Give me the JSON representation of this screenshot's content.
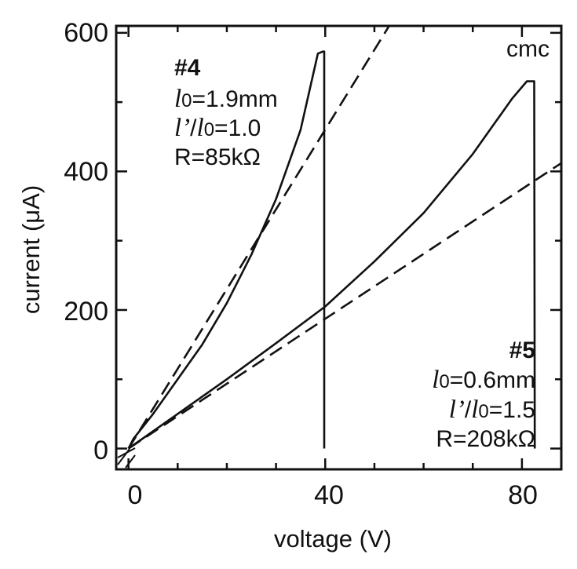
{
  "chart_data": {
    "type": "line",
    "xlabel": "voltage (V)",
    "ylabel": "current (μA)",
    "xlim": [
      -2.5,
      88
    ],
    "ylim": [
      -30,
      610
    ],
    "x_ticks": [
      0,
      40,
      80
    ],
    "y_ticks": [
      0,
      200,
      400,
      600
    ],
    "x_tick_labels": [
      "0",
      "40",
      "80"
    ],
    "y_tick_labels": [
      "0",
      "200",
      "400",
      "600"
    ],
    "corner_label": "cmc",
    "grid": false,
    "series": [
      {
        "id": "s4-measured",
        "style": "solid",
        "points": [
          [
            0,
            0
          ],
          [
            1,
            14
          ],
          [
            5,
            50
          ],
          [
            10,
            100
          ],
          [
            15,
            150
          ],
          [
            20,
            210
          ],
          [
            25,
            280
          ],
          [
            30,
            360
          ],
          [
            35,
            460
          ],
          [
            38.5,
            570
          ],
          [
            39.5,
            573
          ],
          [
            39.8,
            573
          ],
          [
            39.8,
            0
          ]
        ]
      },
      {
        "id": "s4-fit",
        "style": "dashed",
        "points": [
          [
            0,
            0
          ],
          [
            53,
            610
          ]
        ]
      },
      {
        "id": "s5-measured",
        "style": "solid",
        "points": [
          [
            0,
            0
          ],
          [
            10,
            50
          ],
          [
            20,
            100
          ],
          [
            30,
            152
          ],
          [
            40,
            205
          ],
          [
            50,
            270
          ],
          [
            60,
            340
          ],
          [
            70,
            425
          ],
          [
            78,
            505
          ],
          [
            81,
            530
          ],
          [
            82.5,
            530
          ],
          [
            82.6,
            0
          ]
        ]
      },
      {
        "id": "s5-fit",
        "style": "dashed",
        "points": [
          [
            0,
            0
          ],
          [
            88,
            412
          ]
        ]
      }
    ],
    "annotations": [
      {
        "id": "s4",
        "label": "#4",
        "l0": {
          "symbol": "l",
          "subscript": "0",
          "value": "=1.9mm"
        },
        "ratio": {
          "numerator": "l",
          "prime": "’",
          "slash": "/",
          "denominator": "l",
          "subscript": "0",
          "value": "=1.0"
        },
        "resistance": "R=85kΩ"
      },
      {
        "id": "s5",
        "label": "#5",
        "l0": {
          "symbol": "l",
          "subscript": "0",
          "value": "=0.6mm"
        },
        "ratio": {
          "numerator": "l",
          "prime": "’",
          "slash": "/",
          "denominator": "l",
          "subscript": "0",
          "value": "=1.5"
        },
        "resistance": "R=208kΩ"
      }
    ]
  }
}
